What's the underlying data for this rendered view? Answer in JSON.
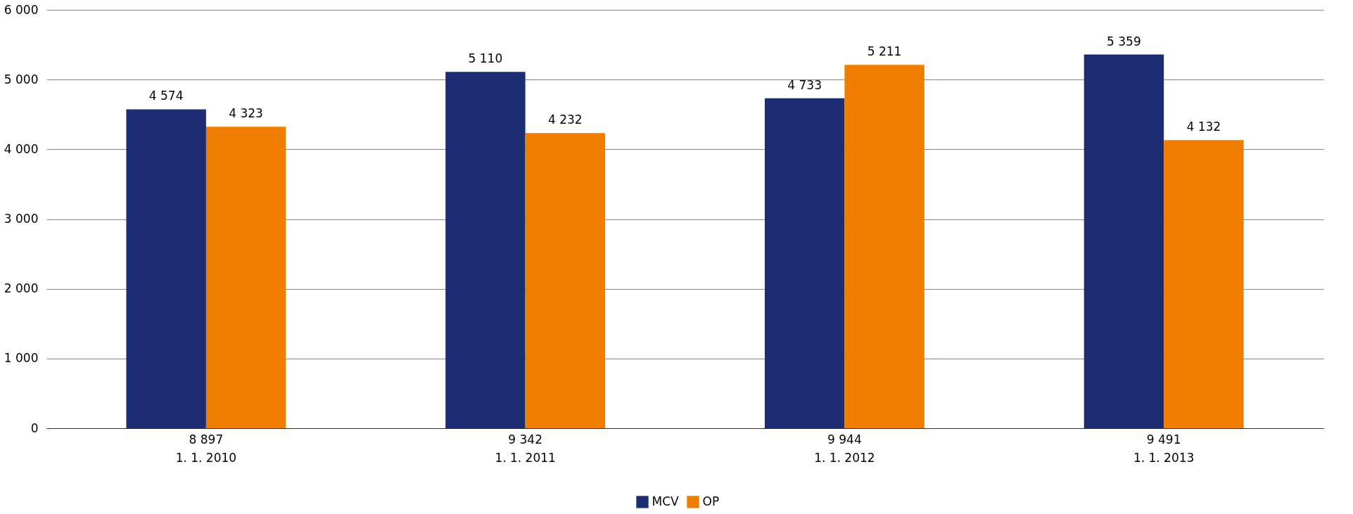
{
  "chart_data": {
    "type": "bar",
    "categories": [
      "8 897\n1. 1. 2010",
      "9 342\n1. 1. 2011",
      "9 944\n1. 1. 2012",
      "9 491\n1. 1. 2013"
    ],
    "series": [
      {
        "name": "MCV",
        "color": "#1d2d73",
        "values": [
          4574,
          5110,
          4733,
          5359
        ],
        "value_labels": [
          "4 574",
          "5 110",
          "4 733",
          "5 359"
        ]
      },
      {
        "name": "OP",
        "color": "#ef7d00",
        "values": [
          4323,
          4232,
          5211,
          4132
        ],
        "value_labels": [
          "4 323",
          "4 232",
          "5 211",
          "4 132"
        ]
      }
    ],
    "ylim": [
      0,
      6000
    ],
    "yticks": [
      {
        "value": 0,
        "label": "0"
      },
      {
        "value": 1000,
        "label": "1 000"
      },
      {
        "value": 2000,
        "label": "2 000"
      },
      {
        "value": 3000,
        "label": "3 000"
      },
      {
        "value": 4000,
        "label": "4 000"
      },
      {
        "value": 5000,
        "label": "5 000"
      },
      {
        "value": 6000,
        "label": "6 000"
      }
    ],
    "grid": "y",
    "legend": "bottom"
  }
}
